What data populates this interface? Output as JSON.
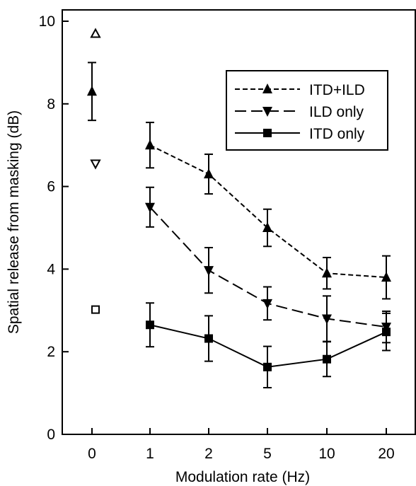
{
  "chart_data": {
    "type": "line",
    "title": "",
    "xlabel": "Modulation rate (Hz)",
    "ylabel": "Spatial release from masking (dB)",
    "categories": [
      "0",
      "1",
      "2",
      "5",
      "10",
      "20"
    ],
    "yticks": [
      "0",
      "2",
      "4",
      "6",
      "8",
      "10"
    ],
    "ylim": [
      0,
      10.2
    ],
    "grid": false,
    "legend_position": "top-right",
    "series": [
      {
        "name": "ITD+ILD",
        "marker": "triangle-up",
        "line_style": "short-dash",
        "color": "#000000",
        "values": [
          8.3,
          7.0,
          6.3,
          5.0,
          3.9,
          3.8
        ],
        "errors": [
          0.7,
          0.55,
          0.48,
          0.45,
          0.38,
          0.52
        ],
        "connected_from": 1
      },
      {
        "name": "ILD only",
        "marker": "triangle-down",
        "line_style": "long-dash",
        "color": "#000000",
        "values": [
          null,
          5.5,
          3.97,
          3.17,
          2.8,
          2.6
        ],
        "errors": [
          null,
          0.48,
          0.55,
          0.4,
          0.55,
          0.38
        ],
        "connected_from": 1
      },
      {
        "name": "ITD only",
        "marker": "square",
        "line_style": "solid",
        "color": "#000000",
        "values": [
          null,
          2.65,
          2.32,
          1.63,
          1.82,
          2.48
        ],
        "errors": [
          null,
          0.53,
          0.55,
          0.5,
          0.42,
          0.45
        ],
        "connected_from": 1
      }
    ],
    "unfilled_points": [
      {
        "x": "0",
        "y": 9.7,
        "marker": "triangle-up-open"
      },
      {
        "x": "0",
        "y": 6.55,
        "marker": "triangle-down-open"
      },
      {
        "x": "0",
        "y": 3.02,
        "marker": "square-open"
      }
    ]
  }
}
